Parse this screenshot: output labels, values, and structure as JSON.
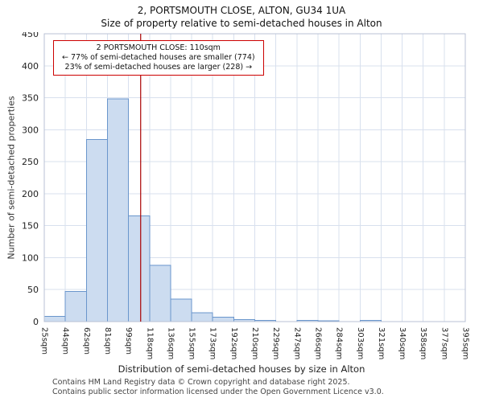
{
  "title": "2, PORTSMOUTH CLOSE, ALTON, GU34 1UA",
  "subtitle": "Size of property relative to semi-detached houses in Alton",
  "annotation": {
    "line1": "2 PORTSMOUTH CLOSE: 110sqm",
    "line2": "← 77% of semi-detached houses are smaller (774)",
    "line3": "23% of semi-detached houses are larger (228) →"
  },
  "footer": {
    "line1": "Contains HM Land Registry data © Crown copyright and database right 2025.",
    "line2": "Contains public sector information licensed under the Open Government Licence v3.0."
  },
  "chart_data": {
    "type": "bar",
    "title": "2, PORTSMOUTH CLOSE, ALTON, GU34 1UA — Size of property relative to semi-detached houses in Alton",
    "xlabel": "Distribution of semi-detached houses by size in Alton",
    "ylabel": "Number of semi-detached properties",
    "bin_edges": [
      25,
      44,
      62,
      81,
      99,
      118,
      136,
      155,
      173,
      192,
      210,
      229,
      247,
      266,
      284,
      303,
      321,
      340,
      358,
      377,
      395
    ],
    "tick_label_suffix": "sqm",
    "values": [
      8,
      47,
      285,
      348,
      165,
      88,
      35,
      14,
      7,
      3,
      2,
      0,
      2,
      1,
      0,
      2,
      0,
      0,
      0,
      0
    ],
    "ylim": [
      0,
      450
    ],
    "ytick_step": 50,
    "grid": true,
    "legend": "none",
    "marker": {
      "label": "2 PORTSMOUTH CLOSE",
      "value": 110,
      "color": "#aa0000"
    },
    "bar_fill": "#ccdcf0",
    "bar_stroke": "#6a96cc",
    "grid_color": "#d8e0ee",
    "border_color": "#b8c2d4"
  }
}
